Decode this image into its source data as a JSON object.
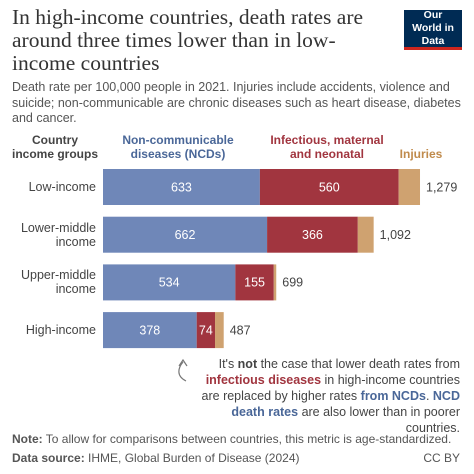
{
  "title": "In high-income countries, death rates are around three times lower than in low-income countries",
  "subtitle": "Death rate per 100,000 people in 2021. Injuries include accidents, violence and suicide; non-communicable are chronic diseases such as heart disease, diabetes and cancer.",
  "logo": "Our World in Data",
  "chart_data": {
    "type": "stacked-bar",
    "orientation": "horizontal",
    "y_label": "Country income groups",
    "categories": [
      "Low-income",
      "Lower-middle income",
      "Upper-middle income",
      "High-income"
    ],
    "series": [
      {
        "name": "Non-communicable diseases (NCDs)",
        "color": "#6f87b8",
        "label_color": "#4a6798",
        "values": [
          633,
          662,
          534,
          378
        ]
      },
      {
        "name": "Infectious, maternal and neonatal",
        "color": "#a1353f",
        "label_color": "#a1353f",
        "values": [
          560,
          366,
          155,
          74
        ]
      },
      {
        "name": "Injuries",
        "color": "#cfa270",
        "label_color": "#c08b4c",
        "values": [
          86,
          64,
          10,
          35
        ]
      }
    ],
    "totals": [
      1279,
      1092,
      699,
      487
    ],
    "total_labels": [
      "1,279",
      "1,092",
      "699",
      "487"
    ],
    "xlim": [
      0,
      1400
    ]
  },
  "annotation": {
    "parts": [
      "It's ",
      "not",
      " the case that lower death rates from ",
      "infectious diseases",
      " in high-income countries are replaced by higher rates ",
      "from NCDs",
      ". ",
      "NCD death rates",
      " are also lower than in poorer countries."
    ]
  },
  "footer": {
    "note_label": "Note:",
    "note": "To allow for comparisons between countries, this metric is age-standardized.",
    "source_label": "Data source:",
    "source": "IHME, Global Burden of Disease (2024)",
    "license": "CC BY"
  }
}
